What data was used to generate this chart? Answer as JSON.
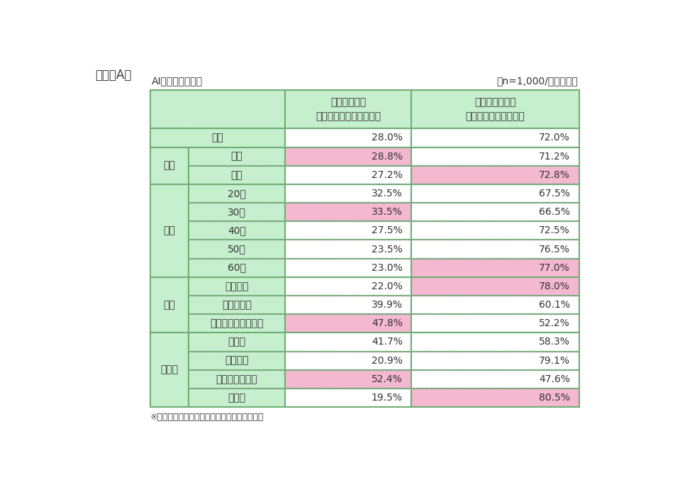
{
  "title_left": "（図表A）",
  "table_title_left": "AI技術の使用状況",
  "table_title_right": "（n=1,000/単一回答）",
  "footnote": "※背景色付きは、各セグメントで上位１位項目",
  "col_headers": [
    "使用している\n（使用許可されている）",
    "使用していない\n（許可されていない）"
  ],
  "row_groups": [
    {
      "group_label": "",
      "is_zenchi": true,
      "rows": [
        {
          "label1": "全体",
          "val1": "28.0%",
          "val2": "72.0%",
          "highlight1": false,
          "highlight2": false
        }
      ]
    },
    {
      "group_label": "性別",
      "is_zenchi": false,
      "rows": [
        {
          "label1": "男性",
          "val1": "28.8%",
          "val2": "71.2%",
          "highlight1": true,
          "highlight2": false
        },
        {
          "label1": "女性",
          "val1": "27.2%",
          "val2": "72.8%",
          "highlight1": false,
          "highlight2": true
        }
      ]
    },
    {
      "group_label": "世代",
      "is_zenchi": false,
      "rows": [
        {
          "label1": "20代",
          "val1": "32.5%",
          "val2": "67.5%",
          "highlight1": false,
          "highlight2": false
        },
        {
          "label1": "30代",
          "val1": "33.5%",
          "val2": "66.5%",
          "highlight1": true,
          "highlight2": false
        },
        {
          "label1": "40代",
          "val1": "27.5%",
          "val2": "72.5%",
          "highlight1": false,
          "highlight2": false
        },
        {
          "label1": "50代",
          "val1": "23.5%",
          "val2": "76.5%",
          "highlight1": false,
          "highlight2": false
        },
        {
          "label1": "60代",
          "val1": "23.0%",
          "val2": "77.0%",
          "highlight1": false,
          "highlight2": true
        }
      ]
    },
    {
      "group_label": "役職",
      "is_zenchi": false,
      "rows": [
        {
          "label1": "一般社員",
          "val1": "22.0%",
          "val2": "78.0%",
          "highlight1": false,
          "highlight2": true
        },
        {
          "label1": "主任・係長",
          "val1": "39.9%",
          "val2": "60.1%",
          "highlight1": false,
          "highlight2": false
        },
        {
          "label1": "管理職（課長以上）",
          "val1": "47.8%",
          "val2": "52.2%",
          "highlight1": true,
          "highlight2": false
        }
      ]
    },
    {
      "group_label": "勤務先",
      "is_zenchi": false,
      "rows": [
        {
          "label1": "大企業",
          "val1": "41.7%",
          "val2": "58.3%",
          "highlight1": false,
          "highlight2": false
        },
        {
          "label1": "中小企業",
          "val1": "20.9%",
          "val2": "79.1%",
          "highlight1": false,
          "highlight2": false
        },
        {
          "label1": "ベンチャー企業",
          "val1": "52.4%",
          "val2": "47.6%",
          "highlight1": true,
          "highlight2": false
        },
        {
          "label1": "公務員",
          "val1": "19.5%",
          "val2": "80.5%",
          "highlight1": false,
          "highlight2": true
        }
      ]
    }
  ],
  "colors": {
    "header_bg": "#c6efce",
    "group_label_bg": "#c6efce",
    "subrow_label_bg": "#c6efce",
    "cell_normal_bg": "#ffffff",
    "cell_highlight_pink": "#f4b8d1",
    "outer_border": "#70ad75",
    "inner_dotted": "#aaaaaa",
    "text_color": "#333333",
    "title_color": "#333333"
  },
  "font_sizes": {
    "title": 11,
    "table_title": 10,
    "header": 10,
    "cell": 10,
    "footnote": 9
  }
}
